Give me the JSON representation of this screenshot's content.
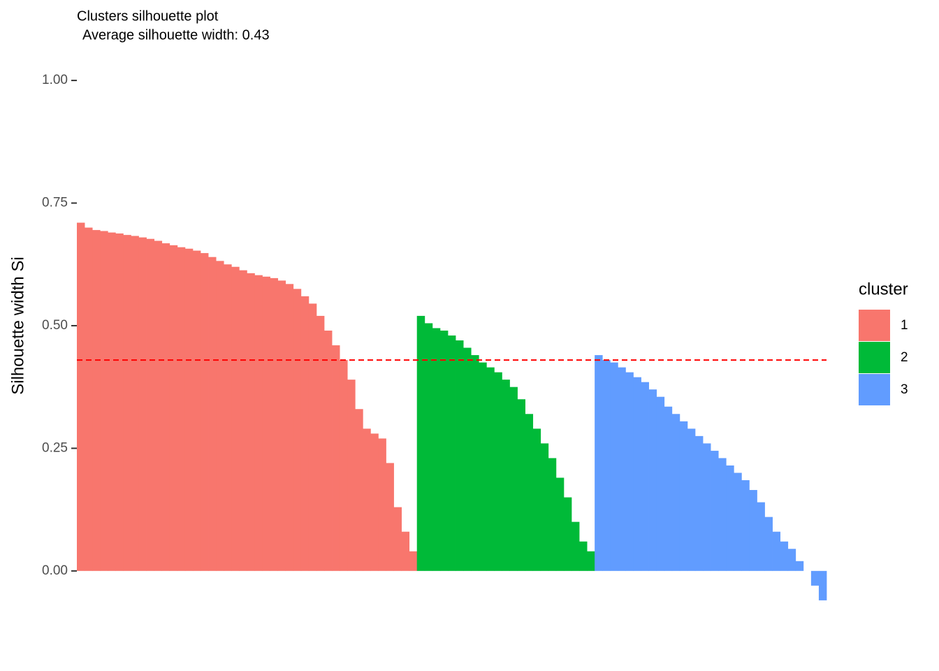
{
  "chart_data": {
    "type": "bar",
    "title": "Clusters silhouette plot",
    "subtitle": "Average silhouette width: 0.43",
    "y_label": "Silhouette width Si",
    "legend_title": "cluster",
    "legend_position": "right",
    "grid": false,
    "ylim": [
      -0.1,
      1.05
    ],
    "yticks": [
      {
        "value": 0,
        "label": "0.00"
      },
      {
        "value": 0.25,
        "label": "0.25"
      },
      {
        "value": 0.5,
        "label": "0.50"
      },
      {
        "value": 0.75,
        "label": "0.75"
      },
      {
        "value": 1,
        "label": "1.00"
      }
    ],
    "average_line": {
      "value": 0.43,
      "color": "#ff0000"
    },
    "series": [
      {
        "name": "1",
        "color": "#f8766d",
        "values": [
          0.71,
          0.7,
          0.695,
          0.693,
          0.69,
          0.688,
          0.685,
          0.683,
          0.68,
          0.677,
          0.673,
          0.668,
          0.664,
          0.66,
          0.657,
          0.653,
          0.648,
          0.64,
          0.632,
          0.625,
          0.62,
          0.613,
          0.607,
          0.603,
          0.6,
          0.597,
          0.592,
          0.585,
          0.575,
          0.56,
          0.545,
          0.52,
          0.49,
          0.46,
          0.43,
          0.39,
          0.33,
          0.29,
          0.28,
          0.27,
          0.22,
          0.13,
          0.08,
          0.04
        ]
      },
      {
        "name": "2",
        "color": "#00ba38",
        "values": [
          0.52,
          0.505,
          0.495,
          0.49,
          0.48,
          0.47,
          0.455,
          0.44,
          0.425,
          0.415,
          0.405,
          0.39,
          0.375,
          0.35,
          0.32,
          0.29,
          0.26,
          0.23,
          0.19,
          0.15,
          0.1,
          0.06,
          0.04
        ]
      },
      {
        "name": "3",
        "color": "#619cff",
        "values": [
          0.44,
          0.43,
          0.425,
          0.415,
          0.405,
          0.395,
          0.385,
          0.37,
          0.355,
          0.335,
          0.32,
          0.305,
          0.29,
          0.275,
          0.26,
          0.245,
          0.23,
          0.215,
          0.2,
          0.185,
          0.165,
          0.14,
          0.11,
          0.08,
          0.06,
          0.045,
          0.02,
          0.0,
          -0.03,
          -0.06
        ]
      }
    ]
  }
}
